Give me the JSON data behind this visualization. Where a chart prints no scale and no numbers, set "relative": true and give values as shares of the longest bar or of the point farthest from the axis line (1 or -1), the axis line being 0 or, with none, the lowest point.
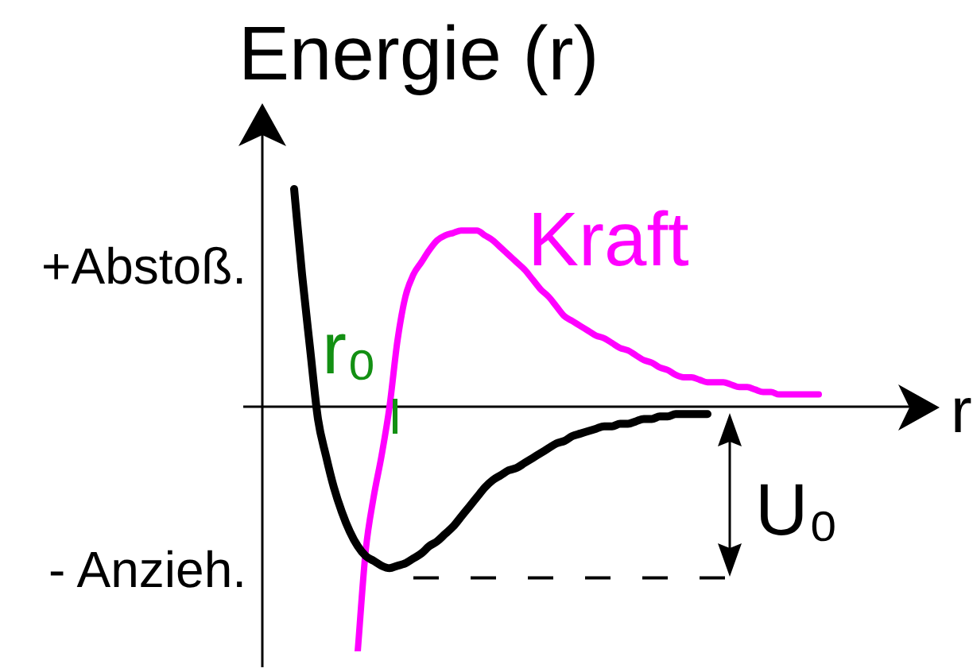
{
  "chart_data": {
    "type": "line",
    "relative": true,
    "ylabel": "Energie (r)",
    "xlabel": "r",
    "categories": [
      null,
      null,
      null,
      null,
      null,
      null,
      null,
      null,
      null,
      null,
      null,
      null,
      null,
      null,
      null,
      null,
      null,
      null,
      null,
      null,
      null,
      null,
      null,
      null,
      null,
      null,
      null,
      null,
      null,
      null,
      null,
      null,
      null,
      null,
      null,
      null,
      null,
      null,
      null,
      null,
      null,
      null,
      null,
      null,
      null,
      null,
      null,
      null,
      null,
      null,
      null,
      null,
      null,
      null,
      null,
      null,
      null,
      null,
      null,
      null,
      null,
      null,
      null,
      null,
      null,
      null,
      null,
      null,
      null,
      null,
      null,
      null,
      null,
      null,
      null,
      null,
      null,
      null,
      null,
      null,
      null,
      null,
      null,
      null,
      null
    ],
    "series": [
      {
        "color": "#000000",
        "values": [
          null,
          null,
          null,
          null,
          0.89,
          0.54,
          0.24,
          -0.05,
          -0.2,
          -0.33,
          -0.43,
          -0.51,
          -0.57,
          -0.61,
          -0.63,
          -0.65,
          -0.66,
          -0.65,
          -0.64,
          -0.62,
          -0.6,
          -0.57,
          -0.55,
          -0.52,
          -0.49,
          -0.45,
          -0.41,
          -0.37,
          -0.33,
          -0.3,
          -0.28,
          -0.26,
          -0.25,
          -0.23,
          -0.21,
          -0.19,
          -0.17,
          -0.15,
          -0.14,
          -0.12,
          -0.11,
          -0.1,
          -0.09,
          -0.08,
          -0.08,
          -0.07,
          -0.07,
          -0.06,
          -0.05,
          -0.05,
          -0.04,
          -0.04,
          -0.03,
          -0.03,
          -0.03,
          -0.03,
          -0.03,
          null,
          null,
          null,
          null,
          null,
          null,
          null,
          null,
          null,
          null,
          null,
          null,
          null,
          null,
          null,
          null,
          null,
          null,
          null,
          null,
          null,
          null,
          null,
          null,
          null,
          null,
          null,
          null
        ]
      },
      {
        "name": "Kraft",
        "color": "#ff00ff",
        "values": [
          null,
          null,
          null,
          null,
          null,
          null,
          null,
          null,
          null,
          null,
          null,
          null,
          -1,
          -0.59,
          -0.37,
          -0.2,
          0,
          0.27,
          0.45,
          0.54,
          0.59,
          0.64,
          0.68,
          0.7,
          0.71,
          0.72,
          0.72,
          0.72,
          0.7,
          0.68,
          0.65,
          0.62,
          0.59,
          0.56,
          0.52,
          0.48,
          0.45,
          0.41,
          0.37,
          0.35,
          0.33,
          0.31,
          0.29,
          0.28,
          0.26,
          0.24,
          0.23,
          0.21,
          0.19,
          0.18,
          0.16,
          0.15,
          0.13,
          0.12,
          0.12,
          0.11,
          0.1,
          0.1,
          0.1,
          0.09,
          0.08,
          0.08,
          0.07,
          0.06,
          0.06,
          0.05,
          0.05,
          0.05,
          0.05,
          0.05,
          0.05,
          null,
          null,
          null,
          null,
          null,
          null,
          null,
          null,
          null,
          null,
          null,
          null,
          null,
          null
        ]
      }
    ],
    "annotations": [
      "+Abstoß.",
      "- Anzieh.",
      "r₀",
      "U₀"
    ],
    "ref_lines": [
      {
        "axis": "y",
        "value": -0.7,
        "line_style": "dashed",
        "color": "#000000"
      }
    ],
    "grid": false,
    "legend": false,
    "marker": "none",
    "line_style": "solid"
  }
}
